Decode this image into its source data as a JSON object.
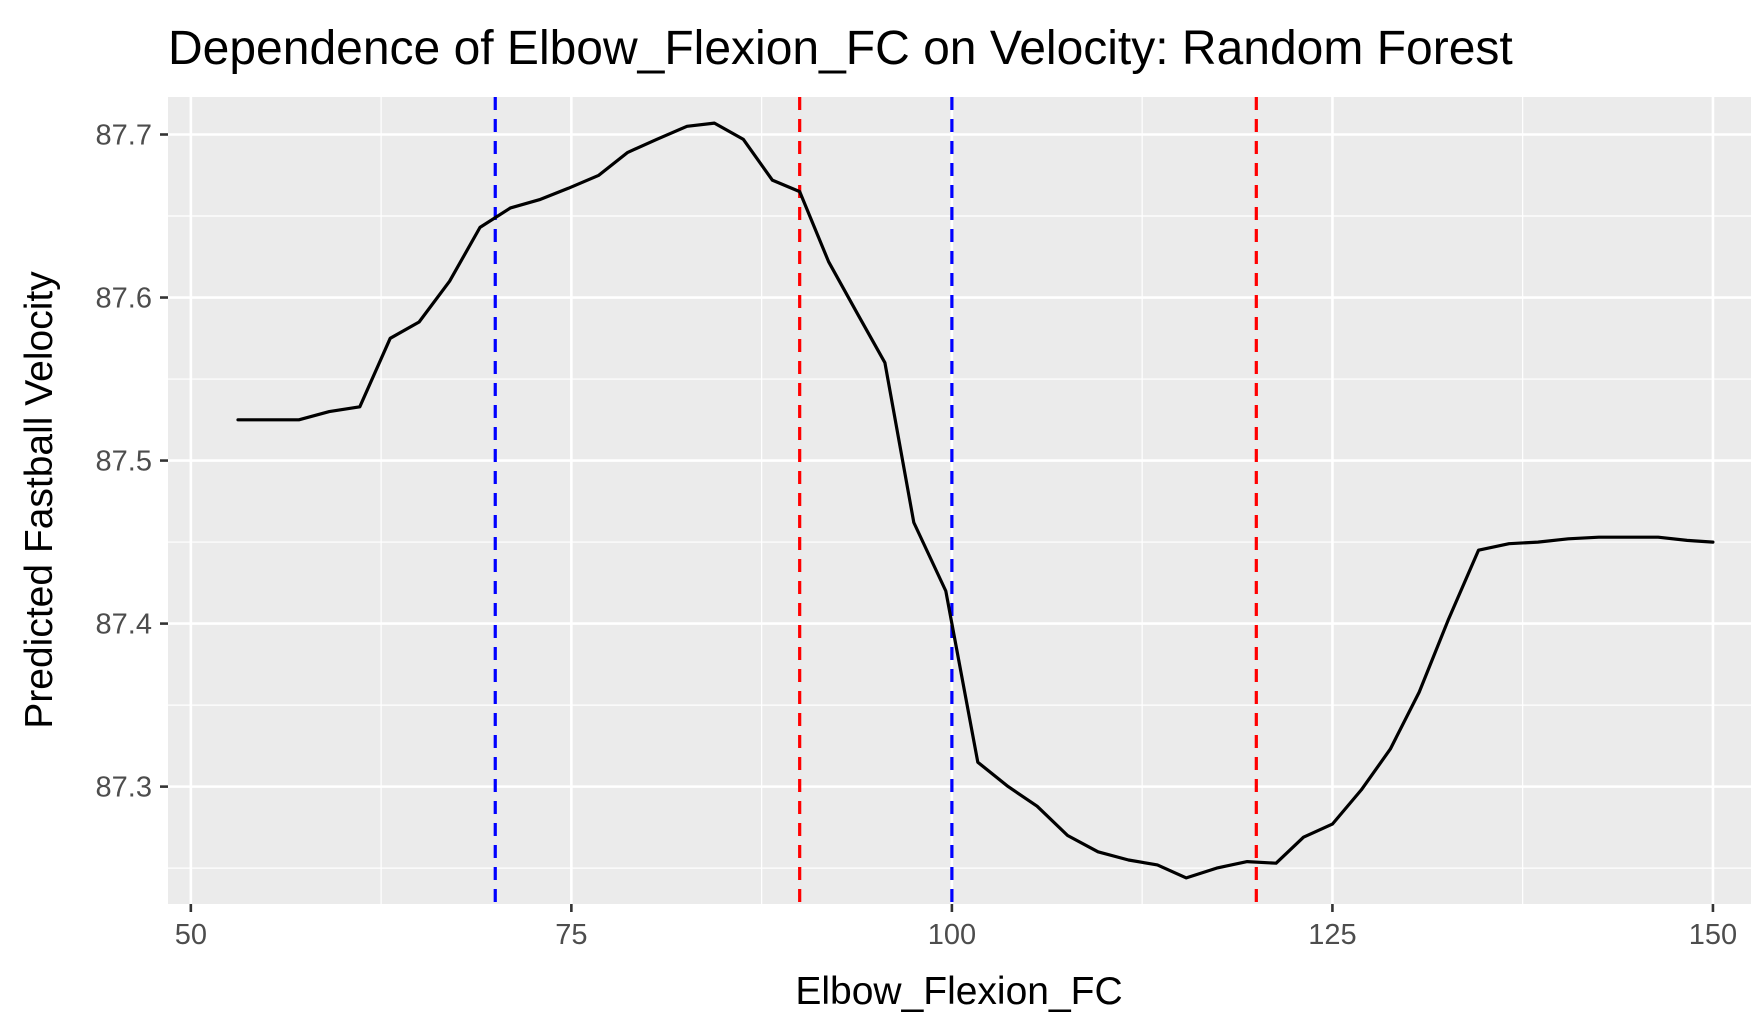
{
  "chart_data": {
    "type": "line",
    "title": "Dependence of Elbow_Flexion_FC on Velocity: Random Forest",
    "xlabel": "Elbow_Flexion_FC",
    "ylabel": "Predicted Fastball Velocity",
    "xlim": [
      48.5,
      152.5
    ],
    "ylim": [
      87.228,
      87.723
    ],
    "x_ticks": [
      50,
      75,
      100,
      125,
      150
    ],
    "x_tick_labels": [
      "50",
      "75",
      "100",
      "125",
      "150"
    ],
    "y_ticks": [
      87.3,
      87.4,
      87.5,
      87.6,
      87.7
    ],
    "y_tick_labels": [
      "87.3",
      "87.4",
      "87.5",
      "87.6",
      "87.7"
    ],
    "grid": true,
    "background": "#ebebeb",
    "grid_color": "#ffffff",
    "series": [
      {
        "color": "#000000",
        "x": [
          53.1,
          55.1,
          57.1,
          59.1,
          61.1,
          63.1,
          65.0,
          67.0,
          69.0,
          71.0,
          72.9,
          74.8,
          76.8,
          78.7,
          80.6,
          82.6,
          84.4,
          86.3,
          88.2,
          90.0,
          91.9,
          93.8,
          95.6,
          97.5,
          99.6,
          101.7,
          103.7,
          105.6,
          107.6,
          109.6,
          111.6,
          113.5,
          115.4,
          117.4,
          119.4,
          121.3,
          123.1,
          125.0,
          126.9,
          128.8,
          130.7,
          132.6,
          134.6,
          136.6,
          138.5,
          140.5,
          142.5,
          144.4,
          146.4,
          148.3,
          150.0
        ],
        "y": [
          87.525,
          87.525,
          87.525,
          87.53,
          87.533,
          87.575,
          87.585,
          87.61,
          87.643,
          87.655,
          87.66,
          87.667,
          87.675,
          87.689,
          87.697,
          87.705,
          87.707,
          87.697,
          87.672,
          87.665,
          87.622,
          87.59,
          87.56,
          87.462,
          87.42,
          87.315,
          87.3,
          87.288,
          87.27,
          87.26,
          87.255,
          87.252,
          87.244,
          87.25,
          87.254,
          87.253,
          87.269,
          87.277,
          87.298,
          87.323,
          87.358,
          87.402,
          87.445,
          87.449,
          87.45,
          87.452,
          87.453,
          87.453,
          87.453,
          87.451,
          87.45
        ]
      }
    ],
    "vlines": [
      {
        "x": 70,
        "color": "#0000ff",
        "style": "dashed"
      },
      {
        "x": 90,
        "color": "#ff0000",
        "style": "dashed"
      },
      {
        "x": 100,
        "color": "#0000ff",
        "style": "dashed"
      },
      {
        "x": 120,
        "color": "#ff0000",
        "style": "dashed"
      }
    ]
  }
}
